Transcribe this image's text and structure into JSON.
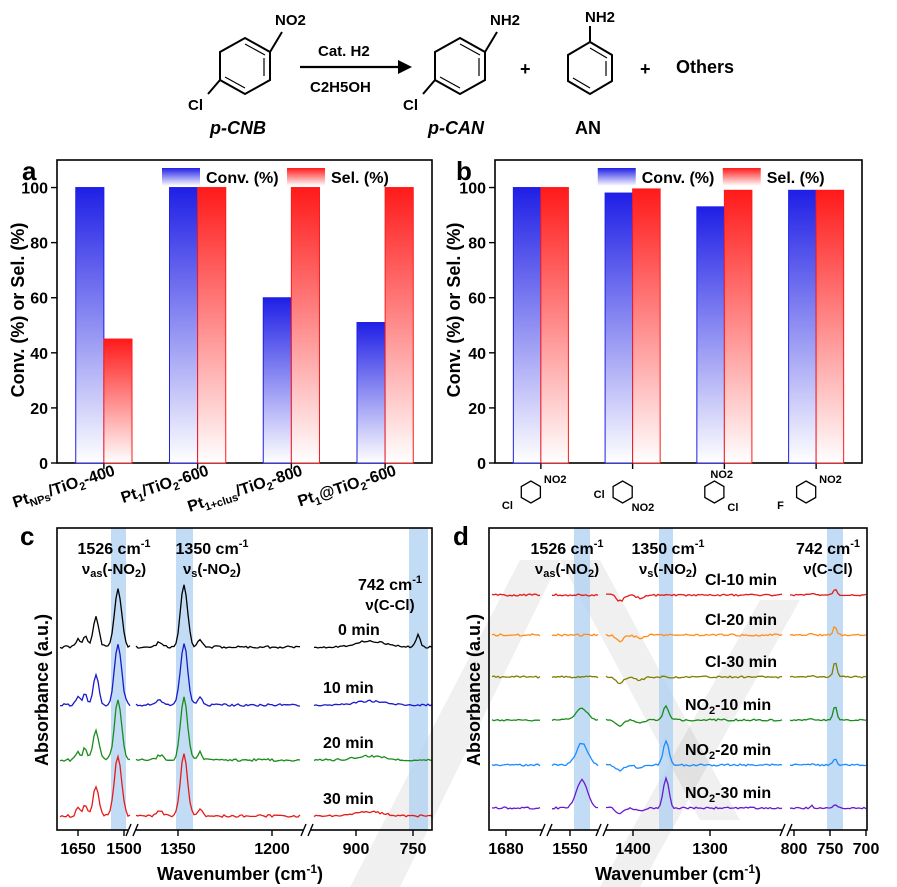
{
  "scheme": {
    "reactant_groups": [
      "NO2",
      "Cl"
    ],
    "reactant_label": "p-CNB",
    "arrow_top": "Cat. H2",
    "arrow_bottom": "C2H5OH",
    "product1_groups": [
      "NH2",
      "Cl"
    ],
    "product1_label": "p-CAN",
    "product2_groups": [
      "NH2"
    ],
    "product2_label": "AN",
    "plus": "+",
    "others": "Others"
  },
  "chart_data": [
    {
      "panel": "a",
      "type": "bar",
      "ylabel": "Conv. (%) or Sel. (%)",
      "ylim": [
        0,
        110
      ],
      "yticks": [
        0,
        20,
        40,
        60,
        80,
        100
      ],
      "categories": [
        "PtNPs/TiO2-400",
        "Pt1/TiO2-600",
        "Pt1+clus/TiO2-800",
        "Pt1@TiO2-600"
      ],
      "series": [
        {
          "name": "Conv. (%)",
          "color": "#1f1fe6",
          "values": [
            100,
            100,
            60,
            51
          ]
        },
        {
          "name": "Sel. (%)",
          "color": "#ff1a1a",
          "values": [
            45,
            100,
            100,
            100
          ]
        }
      ],
      "legend": "top"
    },
    {
      "panel": "b",
      "type": "bar",
      "ylabel": "Conv. (%) or Sel. (%)",
      "ylim": [
        0,
        110
      ],
      "yticks": [
        0,
        20,
        40,
        60,
        80,
        100
      ],
      "categories": [
        "p-CNB",
        "m-CNB",
        "o-CNB",
        "p-FNB"
      ],
      "molecule_labels": [
        {
          "sub1": "Cl",
          "sub2": "NO2"
        },
        {
          "sub1": "Cl",
          "sub2": "NO2"
        },
        {
          "sub1": "NO2",
          "sub2": "Cl"
        },
        {
          "sub1": "F",
          "sub2": "NO2"
        }
      ],
      "series": [
        {
          "name": "Conv. (%)",
          "color": "#1f1fe6",
          "values": [
            100,
            98,
            93,
            99
          ]
        },
        {
          "name": "Sel. (%)",
          "color": "#ff1a1a",
          "values": [
            100,
            99.5,
            99,
            99
          ]
        }
      ],
      "legend": "top"
    },
    {
      "panel": "c",
      "type": "line",
      "xlabel": "Wavenumber (cm-1)",
      "ylabel": "Absorbance (a.u.)",
      "xticks": [
        "1650",
        "1500",
        "1350",
        "1200",
        "900",
        "750"
      ],
      "bands": [
        {
          "label": "1526 cm-1",
          "assign": "νas(-NO2)"
        },
        {
          "label": "1350 cm-1",
          "assign": "νs(-NO2)"
        },
        {
          "label": "742 cm-1",
          "assign": "ν(C-Cl)"
        }
      ],
      "series": [
        {
          "name": "0 min",
          "color": "#000000"
        },
        {
          "name": "10 min",
          "color": "#1a1acc"
        },
        {
          "name": "20 min",
          "color": "#1a8c1a"
        },
        {
          "name": "30 min",
          "color": "#e61a1a"
        }
      ]
    },
    {
      "panel": "d",
      "type": "line",
      "xlabel": "Wavenumber (cm-1)",
      "ylabel": "Absorbance (a.u.)",
      "xticks": [
        "1680",
        "1550",
        "1400",
        "1300",
        "800",
        "750",
        "700"
      ],
      "bands": [
        {
          "label": "1526 cm-1",
          "assign": "νas(-NO2)"
        },
        {
          "label": "1350 cm-1",
          "assign": "νs(-NO2)"
        },
        {
          "label": "742 cm-1",
          "assign": "ν(C-Cl)"
        }
      ],
      "series": [
        {
          "name": "Cl-10 min",
          "color": "#e61a1a"
        },
        {
          "name": "Cl-20 min",
          "color": "#ff8c1a"
        },
        {
          "name": "Cl-30 min",
          "color": "#808000"
        },
        {
          "name": "NO2-10 min",
          "color": "#1a8c1a"
        },
        {
          "name": "NO2-20 min",
          "color": "#1a8cff"
        },
        {
          "name": "NO2-30 min",
          "color": "#6a1acc"
        }
      ]
    }
  ]
}
